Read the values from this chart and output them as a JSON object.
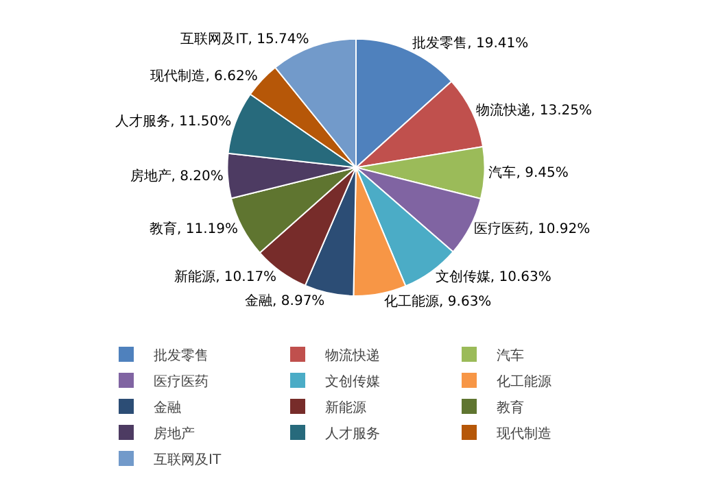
{
  "chart_data": {
    "type": "pie",
    "categories": [
      "批发零售",
      "物流快递",
      "汽车",
      "医疗医药",
      "文创传媒",
      "化工能源",
      "金融",
      "新能源",
      "教育",
      "房地产",
      "人才服务",
      "现代制造",
      "互联网及IT"
    ],
    "values": [
      19.41,
      13.25,
      9.45,
      10.92,
      10.63,
      9.63,
      8.97,
      10.17,
      11.19,
      8.2,
      11.5,
      6.62,
      15.74
    ],
    "value_labels": [
      "批发零售, 19.41%",
      "物流快递, 13.25%",
      "汽车, 9.45%",
      "医疗医药, 10.92%",
      "文创传媒, 10.63%",
      "化工能源, 9.63%",
      "金融, 8.97%",
      "新能源, 10.17%",
      "教育, 11.19%",
      "房地产, 8.20%",
      "人才服务, 11.50%",
      "现代制造, 6.62%",
      "互联网及IT, 15.74%"
    ],
    "colors": [
      "#4f81bd",
      "#c0504d",
      "#9bbb59",
      "#8064a2",
      "#4bacc6",
      "#f79646",
      "#2c4d75",
      "#772c2a",
      "#5f7530",
      "#4d3b62",
      "#276a7c",
      "#b65708",
      "#729aca"
    ],
    "legend": "bottom"
  }
}
